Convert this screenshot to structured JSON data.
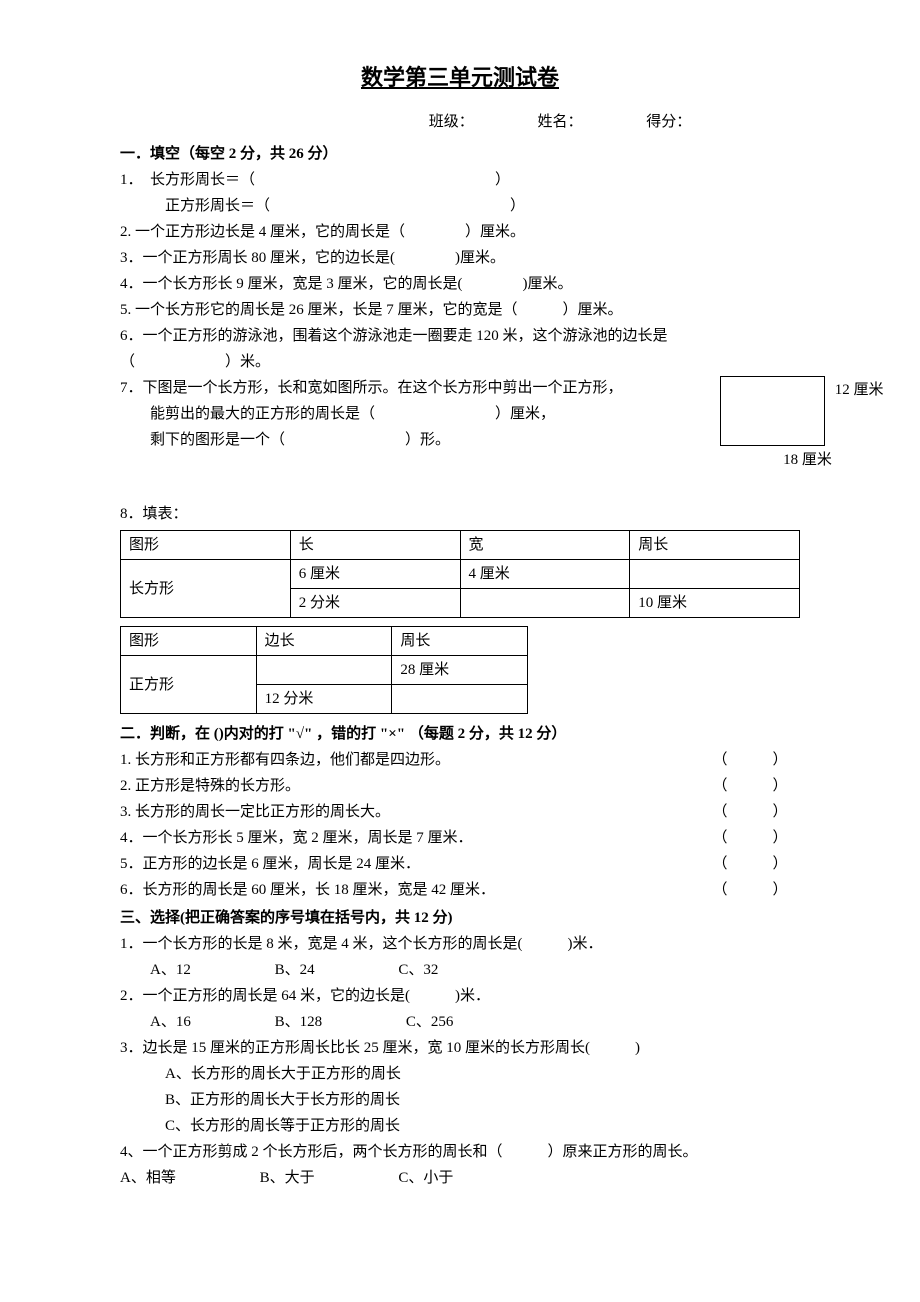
{
  "title": "数学第三单元测试卷",
  "header": {
    "class": "班级：",
    "name": "姓名：",
    "score": "得分："
  },
  "s1": {
    "header": "一．填空（每空 2 分，共 26 分）",
    "q1a": "1．　长方形周长＝（　　　　　　　　　　　　　　　　）",
    "q1b": "正方形周长＝（　　　　　　　　　　　　　　　　）",
    "q2": "2. 一个正方形边长是 4 厘米，它的周长是（　　　　）厘米。",
    "q3": "3．一个正方形周长 80 厘米，它的边长是(　　　　)厘米。",
    "q4": "4．一个长方形长 9 厘米，宽是 3 厘米，它的周长是(　　　　)厘米。",
    "q5": "5. 一个长方形它的周长是 26 厘米，长是 7 厘米，它的宽是（　　　）厘米。",
    "q6a": "6．一个正方形的游泳池，围着这个游泳池走一圈要走 120 米，这个游泳池的边长是",
    "q6b": "（　　　　　　）米。",
    "q7a": "7．下图是一个长方形，长和宽如图所示。在这个长方形中剪出一个正方形，",
    "q7b": "能剪出的最大的正方形的周长是（　　　　　　　　）厘米，",
    "q7c": "剩下的图形是一个（　　　　　　　　）形。",
    "rect": {
      "right": "12 厘米",
      "bottom": "18 厘米"
    },
    "q8": "8．填表：",
    "t1": {
      "headers": [
        "图形",
        "长",
        "宽",
        "周长"
      ],
      "r1": [
        "长方形",
        "6 厘米",
        "4 厘米",
        ""
      ],
      "r2": [
        "2 分米",
        "",
        "10 厘米"
      ]
    },
    "t2": {
      "headers": [
        "图形",
        "边长",
        "周长"
      ],
      "r1": [
        "正方形",
        "",
        "28 厘米"
      ],
      "r2": [
        "12 分米",
        ""
      ]
    }
  },
  "s2": {
    "header": "二．判断，在 ()内对的打 \"√\" ，错的打 \"×\" （每题 2 分，共 12 分）",
    "items": [
      "1. 长方形和正方形都有四条边，他们都是四边形。",
      "2. 正方形是特殊的长方形。",
      "3. 长方形的周长一定比正方形的周长大。",
      "4．一个长方形长 5 厘米，宽 2 厘米，周长是 7 厘米．",
      "5．正方形的边长是 6 厘米，周长是 24 厘米．",
      "6．长方形的周长是 60 厘米，长 18 厘米，宽是 42 厘米．"
    ],
    "paren": "（　　　）"
  },
  "s3": {
    "header": "三、选择(把正确答案的序号填在括号内，共 12 分)",
    "q1": "1．一个长方形的长是 8 米，宽是 4 米，这个长方形的周长是(　　　)米．",
    "q1opts": [
      "A、12",
      "B、24",
      "C、32"
    ],
    "q2": "2．一个正方形的周长是 64 米，它的边长是(　　　)米．",
    "q2opts": [
      "A、16",
      "B、128",
      "C、256"
    ],
    "q3": "3．边长是 15 厘米的正方形周长比长 25 厘米，宽 10 厘米的长方形周长(　　　)",
    "q3opts": [
      "A、长方形的周长大于正方形的周长",
      "B、正方形的周长大于长方形的周长",
      "C、长方形的周长等于正方形的周长"
    ],
    "q4": "4、一个正方形剪成 2 个长方形后，两个长方形的周长和（　　　）原来正方形的周长。",
    "q4opts": [
      "A、相等",
      "B、大于",
      "C、小于"
    ]
  }
}
